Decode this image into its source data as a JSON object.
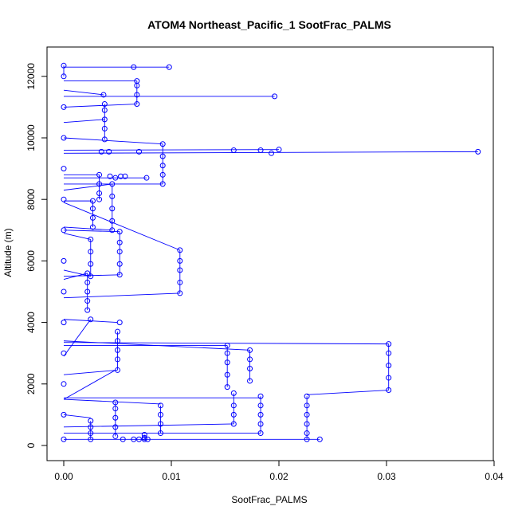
{
  "chart_data": {
    "type": "scatter",
    "title": "ATOM4 Northeast_Pacific_1 SootFrac_PALMS",
    "xlabel": "SootFrac_PALMS",
    "ylabel": "Altitude (m)",
    "xlim": [
      0,
      0.04
    ],
    "ylim": [
      0,
      12400
    ],
    "xticks": [
      0,
      0.01,
      0.02,
      0.03,
      0.04
    ],
    "xtick_labels": [
      "0.00",
      "0.01",
      "0.02",
      "0.03",
      "0.04"
    ],
    "yticks": [
      0,
      2000,
      4000,
      6000,
      8000,
      10000,
      12000
    ],
    "ytick_labels": [
      "0",
      "2000",
      "4000",
      "6000",
      "8000",
      "10000",
      "12000"
    ],
    "grid": false,
    "series_color": "#0000ff",
    "points": [
      [
        0,
        200
      ],
      [
        0.0055,
        200
      ],
      [
        0.0065,
        200
      ],
      [
        0.007,
        200
      ],
      [
        0.0075,
        200
      ],
      [
        0.0078,
        200
      ],
      [
        0.0226,
        200
      ],
      [
        0.0238,
        200
      ],
      [
        0.0025,
        200
      ],
      [
        0.0025,
        400
      ],
      [
        0.0025,
        600
      ],
      [
        0.0025,
        800
      ],
      [
        0.0048,
        300
      ],
      [
        0.0048,
        600
      ],
      [
        0.0048,
        900
      ],
      [
        0.0048,
        1200
      ],
      [
        0.0048,
        1400
      ],
      [
        0.0075,
        250
      ],
      [
        0.0075,
        350
      ],
      [
        0.009,
        400
      ],
      [
        0.009,
        700
      ],
      [
        0.009,
        1000
      ],
      [
        0.009,
        1300
      ],
      [
        0.0158,
        700
      ],
      [
        0.0158,
        1000
      ],
      [
        0.0158,
        1300
      ],
      [
        0.0158,
        1700
      ],
      [
        0.0183,
        400
      ],
      [
        0.0183,
        700
      ],
      [
        0.0183,
        1000
      ],
      [
        0.0183,
        1300
      ],
      [
        0.0183,
        1600
      ],
      [
        0.0226,
        400
      ],
      [
        0.0226,
        700
      ],
      [
        0.0226,
        1000
      ],
      [
        0.0226,
        1300
      ],
      [
        0.0226,
        1600
      ],
      [
        0.0302,
        1800
      ],
      [
        0.0302,
        2200
      ],
      [
        0.0302,
        2600
      ],
      [
        0.0302,
        3000
      ],
      [
        0.0302,
        3300
      ],
      [
        0.0152,
        1900
      ],
      [
        0.0152,
        2300
      ],
      [
        0.0152,
        2700
      ],
      [
        0.0152,
        3000
      ],
      [
        0.0152,
        3250
      ],
      [
        0.0173,
        2100
      ],
      [
        0.0173,
        2500
      ],
      [
        0.0173,
        2800
      ],
      [
        0.0173,
        3100
      ],
      [
        0.005,
        2450
      ],
      [
        0.005,
        2800
      ],
      [
        0.005,
        3100
      ],
      [
        0.005,
        3400
      ],
      [
        0.005,
        3700
      ],
      [
        0.0052,
        4000
      ],
      [
        0.0025,
        4100
      ],
      [
        0.0022,
        4400
      ],
      [
        0.0022,
        4700
      ],
      [
        0.0022,
        5000
      ],
      [
        0.0022,
        5300
      ],
      [
        0.0022,
        5600
      ],
      [
        0.0108,
        4950
      ],
      [
        0.0108,
        5300
      ],
      [
        0.0108,
        5700
      ],
      [
        0.0108,
        6000
      ],
      [
        0.0108,
        6350
      ],
      [
        0.0025,
        5500
      ],
      [
        0.0025,
        5900
      ],
      [
        0.0025,
        6300
      ],
      [
        0.0025,
        6700
      ],
      [
        0.0052,
        5550
      ],
      [
        0.0052,
        5900
      ],
      [
        0.0052,
        6300
      ],
      [
        0.0052,
        6600
      ],
      [
        0.0052,
        6950
      ],
      [
        0.0027,
        7100
      ],
      [
        0.0027,
        7400
      ],
      [
        0.0027,
        7700
      ],
      [
        0.0027,
        7950
      ],
      [
        0.0045,
        7000
      ],
      [
        0.0045,
        7300
      ],
      [
        0.0045,
        7700
      ],
      [
        0.0045,
        8100
      ],
      [
        0.0045,
        8500
      ],
      [
        0.0033,
        8000
      ],
      [
        0.0033,
        8200
      ],
      [
        0.0033,
        8500
      ],
      [
        0.0033,
        8800
      ],
      [
        0.0092,
        8500
      ],
      [
        0.0092,
        8800
      ],
      [
        0.0092,
        9100
      ],
      [
        0.0092,
        9400
      ],
      [
        0.0092,
        9800
      ],
      [
        0.0043,
        8750
      ],
      [
        0.0048,
        8700
      ],
      [
        0.0053,
        8750
      ],
      [
        0.0057,
        8750
      ],
      [
        0.0077,
        8700
      ],
      [
        0.0035,
        9550
      ],
      [
        0.0042,
        9550
      ],
      [
        0.007,
        9550
      ],
      [
        0.0158,
        9600
      ],
      [
        0.0183,
        9600
      ],
      [
        0.0193,
        9500
      ],
      [
        0.02,
        9620
      ],
      [
        0.0385,
        9550
      ],
      [
        0.0038,
        9950
      ],
      [
        0.0038,
        10300
      ],
      [
        0.0038,
        10600
      ],
      [
        0.0038,
        10900
      ],
      [
        0.0038,
        11100
      ],
      [
        0.0037,
        11400
      ],
      [
        0.0068,
        11100
      ],
      [
        0.0068,
        11400
      ],
      [
        0.0068,
        11700
      ],
      [
        0.0068,
        11850
      ],
      [
        0.0196,
        11350
      ],
      [
        0.0065,
        12300
      ],
      [
        0.0098,
        12300
      ],
      [
        0,
        1000
      ],
      [
        0,
        2000
      ],
      [
        0,
        3000
      ],
      [
        0,
        4000
      ],
      [
        0,
        5000
      ],
      [
        0,
        6000
      ],
      [
        0,
        7000
      ],
      [
        0,
        8000
      ],
      [
        0,
        9000
      ],
      [
        0,
        10000
      ],
      [
        0,
        11000
      ],
      [
        0,
        12000
      ],
      [
        0,
        12350
      ]
    ],
    "connecting_lines": [
      [
        [
          0,
          200
        ],
        [
          0.0238,
          200
        ]
      ],
      [
        [
          0,
          400
        ],
        [
          0.0183,
          400
        ]
      ],
      [
        [
          0,
          600
        ],
        [
          0.0158,
          700
        ]
      ],
      [
        [
          0,
          1000
        ],
        [
          0.0025,
          900
        ]
      ],
      [
        [
          0,
          1500
        ],
        [
          0.009,
          1350
        ]
      ],
      [
        [
          0,
          1500
        ],
        [
          0.0048,
          2450
        ]
      ],
      [
        [
          0,
          1550
        ],
        [
          0.0183,
          1550
        ]
      ],
      [
        [
          0.0226,
          1650
        ],
        [
          0.0302,
          1800
        ]
      ],
      [
        [
          0,
          2300
        ],
        [
          0.005,
          2450
        ]
      ],
      [
        [
          0,
          2900
        ],
        [
          0.0025,
          4100
        ]
      ],
      [
        [
          0,
          3250
        ],
        [
          0.0152,
          3250
        ]
      ],
      [
        [
          0,
          3350
        ],
        [
          0.0302,
          3300
        ]
      ],
      [
        [
          0,
          3400
        ],
        [
          0.0173,
          3100
        ]
      ],
      [
        [
          0,
          4100
        ],
        [
          0.005,
          4000
        ]
      ],
      [
        [
          0,
          4800
        ],
        [
          0.0108,
          4950
        ]
      ],
      [
        [
          0,
          5400
        ],
        [
          0.0022,
          5600
        ]
      ],
      [
        [
          0,
          5500
        ],
        [
          0.0052,
          5550
        ]
      ],
      [
        [
          0,
          5700
        ],
        [
          0.0025,
          5500
        ]
      ],
      [
        [
          0,
          6900
        ],
        [
          0.0025,
          6700
        ]
      ],
      [
        [
          0,
          7000
        ],
        [
          0.0052,
          6950
        ]
      ],
      [
        [
          0,
          7100
        ],
        [
          0.0045,
          7000
        ]
      ],
      [
        [
          0,
          7900
        ],
        [
          0.0108,
          6350
        ]
      ],
      [
        [
          0,
          7950
        ],
        [
          0.0027,
          7950
        ]
      ],
      [
        [
          0,
          8300
        ],
        [
          0.0045,
          8500
        ]
      ],
      [
        [
          0,
          8500
        ],
        [
          0.0092,
          8500
        ]
      ],
      [
        [
          0,
          8700
        ],
        [
          0.0077,
          8700
        ]
      ],
      [
        [
          0,
          8800
        ],
        [
          0.0033,
          8800
        ]
      ],
      [
        [
          0,
          9500
        ],
        [
          0.0385,
          9550
        ]
      ],
      [
        [
          0,
          9600
        ],
        [
          0.02,
          9620
        ]
      ],
      [
        [
          0,
          10000
        ],
        [
          0.0092,
          9800
        ]
      ],
      [
        [
          0,
          10500
        ],
        [
          0.0038,
          10600
        ]
      ],
      [
        [
          0,
          11000
        ],
        [
          0.0068,
          11100
        ]
      ],
      [
        [
          0,
          11350
        ],
        [
          0.0196,
          11350
        ]
      ],
      [
        [
          0,
          11550
        ],
        [
          0.0037,
          11400
        ]
      ],
      [
        [
          0,
          11850
        ],
        [
          0.0068,
          11850
        ]
      ],
      [
        [
          0,
          12300
        ],
        [
          0.0098,
          12300
        ]
      ]
    ]
  }
}
